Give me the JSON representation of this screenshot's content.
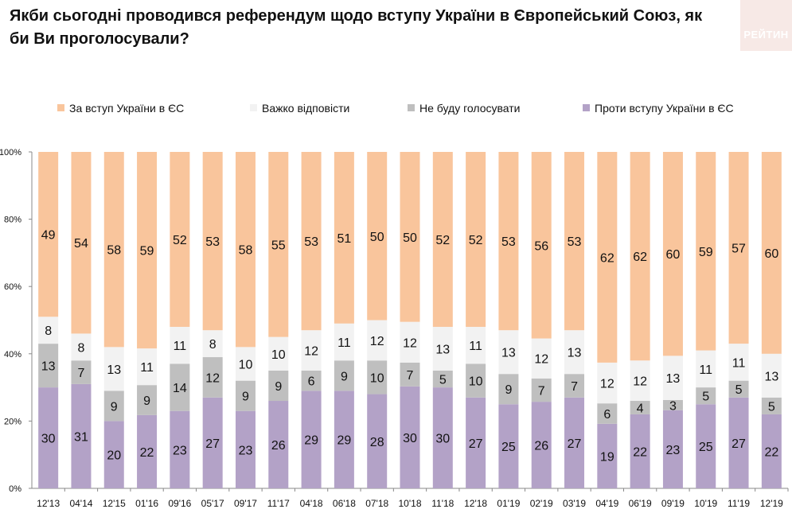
{
  "title": "Якби сьогодні проводився референдум щодо вступу України в Європейський Союз, як би Ви проголосували?",
  "logo_text": "РЕЙТИН",
  "colors": {
    "for": "#f9c59c",
    "hard": "#f2f2f2",
    "notvote": "#bfbfbf",
    "against": "#b3a2c7",
    "axis": "#888888",
    "text": "#111111"
  },
  "chart_data": {
    "type": "bar",
    "stacked": true,
    "percent": true,
    "title": "Якби сьогодні проводився референдум щодо вступу України в Європейський Союз, як би Ви проголосували?",
    "categories": [
      "12'13",
      "04'14",
      "12'15",
      "01'16",
      "09'16",
      "05'17",
      "09'17",
      "11'17",
      "04'18",
      "06'18",
      "07'18",
      "10'18",
      "11'18",
      "12'18",
      "01'19",
      "02'19",
      "03'19",
      "04'19",
      "06'19",
      "09'19",
      "10'19",
      "11'19",
      "12'19"
    ],
    "y_ticks": [
      "0%",
      "20%",
      "40%",
      "60%",
      "80%",
      "100%"
    ],
    "ylim": [
      0,
      100
    ],
    "legend_position": "top",
    "series": [
      {
        "name": "Проти вступу України в ЄС",
        "key": "against",
        "values": [
          30,
          31,
          20,
          22,
          23,
          27,
          23,
          26,
          29,
          29,
          28,
          30,
          30,
          27,
          25,
          26,
          27,
          19,
          22,
          23,
          25,
          27,
          22
        ]
      },
      {
        "name": "Не буду голосувати",
        "key": "notvote",
        "values": [
          13,
          7,
          9,
          9,
          14,
          12,
          9,
          9,
          6,
          9,
          10,
          7,
          5,
          10,
          9,
          7,
          7,
          6,
          4,
          3,
          5,
          5,
          5
        ]
      },
      {
        "name": "Важко відповісти",
        "key": "hard",
        "values": [
          8,
          8,
          13,
          11,
          11,
          8,
          10,
          10,
          12,
          11,
          12,
          12,
          13,
          11,
          13,
          12,
          13,
          12,
          12,
          13,
          11,
          11,
          13
        ]
      },
      {
        "name": "За вступ України в ЄС",
        "key": "for",
        "values": [
          49,
          54,
          58,
          59,
          52,
          53,
          58,
          55,
          53,
          51,
          50,
          50,
          52,
          52,
          53,
          56,
          53,
          62,
          62,
          60,
          59,
          57,
          60
        ]
      }
    ]
  },
  "legend": [
    {
      "label": "За вступ України в ЄС",
      "key": "for"
    },
    {
      "label": "Важко відповісти",
      "key": "hard"
    },
    {
      "label": "Не буду голосувати",
      "key": "notvote"
    },
    {
      "label": "Проти вступу України в ЄС",
      "key": "against"
    }
  ]
}
